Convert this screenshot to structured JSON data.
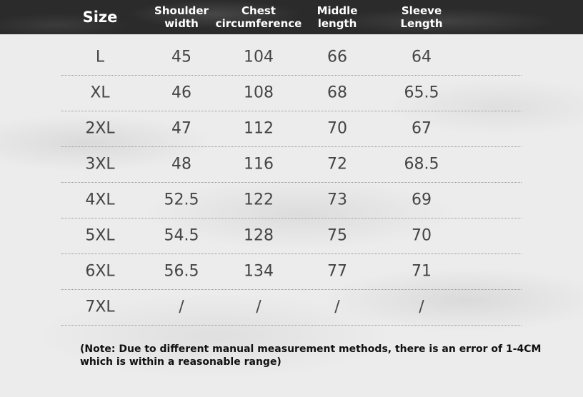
{
  "table": {
    "header": [
      [
        "Size"
      ],
      [
        "Shoulder",
        "width"
      ],
      [
        "Chest",
        "circumference"
      ],
      [
        "Middle",
        "length"
      ],
      [
        "Sleeve",
        "Length"
      ]
    ],
    "rows": [
      [
        "L",
        "45",
        "104",
        "66",
        "64"
      ],
      [
        "XL",
        "46",
        "108",
        "68",
        "65.5"
      ],
      [
        "2XL",
        "47",
        "112",
        "70",
        "67"
      ],
      [
        "3XL",
        "48",
        "116",
        "72",
        "68.5"
      ],
      [
        "4XL",
        "52.5",
        "122",
        "73",
        "69"
      ],
      [
        "5XL",
        "54.5",
        "128",
        "75",
        "70"
      ],
      [
        "6XL",
        "56.5",
        "134",
        "77",
        "71"
      ],
      [
        "7XL",
        "/",
        "/",
        "/",
        "/"
      ]
    ]
  },
  "note": [
    "(Note: Due to different manual measurement methods, there is an error of 1-4CM",
    "which is within a reasonable range)"
  ]
}
